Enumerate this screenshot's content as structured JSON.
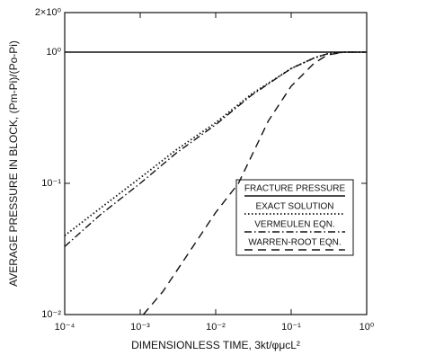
{
  "chart_data": {
    "type": "line",
    "xlabel": "DIMENSIONLESS TIME, 3kt/φμcL²",
    "ylabel": "AVERAGE PRESSURE IN BLOCK, (Pm-Pi)/(Po-Pi)",
    "xscale": "log",
    "yscale": "log",
    "xlim": [
      0.0001,
      1
    ],
    "ylim": [
      0.01,
      2
    ],
    "xticks": [
      {
        "value": 0.0001,
        "label": "10⁻⁴"
      },
      {
        "value": 0.001,
        "label": "10⁻³"
      },
      {
        "value": 0.01,
        "label": "10⁻²"
      },
      {
        "value": 0.1,
        "label": "10⁻¹"
      },
      {
        "value": 1,
        "label": "10⁰"
      }
    ],
    "yticks": [
      {
        "value": 0.01,
        "label": "10⁻²"
      },
      {
        "value": 0.1,
        "label": "10⁻¹"
      },
      {
        "value": 1,
        "label": "10⁰"
      },
      {
        "value": 2,
        "label": "2×10⁰"
      }
    ],
    "series": [
      {
        "name": "FRACTURE PRESSURE",
        "color": "#111111",
        "style": "solid",
        "x": [
          0.0001,
          1
        ],
        "values": [
          1,
          1
        ]
      },
      {
        "name": "EXACT SOLUTION",
        "color": "#111111",
        "style": "dotted",
        "x": [
          0.0001,
          0.0003,
          0.001,
          0.003,
          0.01,
          0.03,
          0.1,
          0.2,
          0.3,
          0.5,
          1
        ],
        "values": [
          0.04,
          0.065,
          0.11,
          0.18,
          0.29,
          0.48,
          0.75,
          0.9,
          0.97,
          1,
          1
        ]
      },
      {
        "name": "VERMEULEN EQN.",
        "color": "#111111",
        "style": "dashdot",
        "x": [
          0.0001,
          0.0003,
          0.001,
          0.003,
          0.01,
          0.03,
          0.1,
          0.2,
          0.3,
          0.5,
          1
        ],
        "values": [
          0.033,
          0.058,
          0.1,
          0.17,
          0.28,
          0.47,
          0.75,
          0.9,
          0.97,
          1,
          1
        ]
      },
      {
        "name": "WARREN-ROOT EQN.",
        "color": "#111111",
        "style": "dashed",
        "x": [
          0.0011,
          0.002,
          0.005,
          0.01,
          0.02,
          0.05,
          0.1,
          0.2,
          0.3,
          0.5
        ],
        "values": [
          0.01,
          0.015,
          0.033,
          0.06,
          0.1,
          0.3,
          0.55,
          0.82,
          0.95,
          1
        ]
      }
    ]
  }
}
